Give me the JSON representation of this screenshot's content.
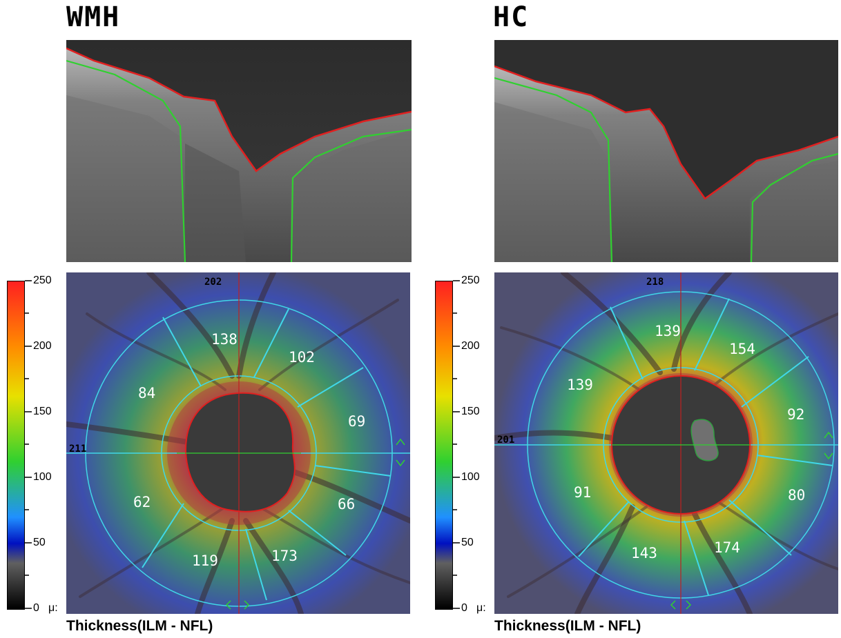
{
  "panels": [
    {
      "title": "WMH",
      "caption": "Thickness(ILM - NFL)",
      "top_value": "202",
      "left_value": "211",
      "sectors": [
        "138",
        "102",
        "84",
        "69",
        "62",
        "66",
        "119",
        "173"
      ]
    },
    {
      "title": "HC",
      "caption": "Thickness(ILM - NFL)",
      "top_value": "218",
      "left_value": "201",
      "sectors": [
        "139",
        "154",
        "139",
        "92",
        "91",
        "80",
        "143",
        "174"
      ]
    }
  ],
  "color_scale": {
    "ticks": [
      "250",
      "200",
      "150",
      "100",
      "50",
      "0"
    ],
    "unit": "μ:"
  },
  "colors": {
    "ilm_line": "#e02020",
    "nfl_line": "#30d030",
    "grid_ring": "#40d8e8",
    "cup": "#3a3a3a"
  }
}
